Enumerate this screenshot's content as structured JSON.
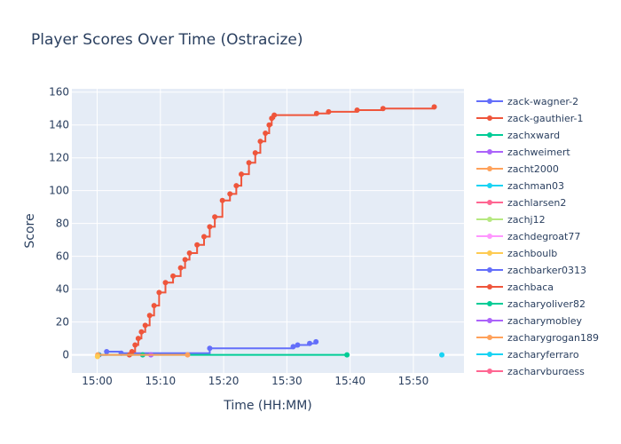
{
  "chart_data": {
    "type": "line",
    "title": "Player Scores Over Time (Ostracize)",
    "xlabel": "Time (HH:MM)",
    "ylabel": "Score",
    "x_unit": "minutes after 15:00",
    "xlim": [
      -4,
      58
    ],
    "ylim": [
      -11,
      162
    ],
    "x_ticks": [
      {
        "value": 0,
        "label": "15:00"
      },
      {
        "value": 10,
        "label": "15:10"
      },
      {
        "value": 20,
        "label": "15:20"
      },
      {
        "value": 30,
        "label": "15:30"
      },
      {
        "value": 40,
        "label": "15:40"
      },
      {
        "value": 50,
        "label": "15:50"
      }
    ],
    "y_ticks": [
      0,
      20,
      40,
      60,
      80,
      100,
      120,
      140,
      160
    ],
    "grid": true,
    "legend_position": "right",
    "series": [
      {
        "name": "zack-wagner-2",
        "color": "#636efa",
        "x": [
          0.3,
          1.5,
          3.8,
          17.8,
          31.0,
          31.7,
          33.6,
          34.6
        ],
        "y": [
          0,
          2,
          1,
          4,
          5,
          6,
          7,
          8
        ]
      },
      {
        "name": "zack-gauthier-1",
        "color": "#ef553b",
        "x": [
          5.1,
          5.5,
          6.0,
          6.5,
          7.0,
          7.6,
          8.3,
          9.0,
          9.8,
          10.8,
          12.0,
          13.2,
          13.9,
          14.6,
          15.8,
          16.9,
          17.8,
          18.6,
          19.8,
          21.0,
          22.0,
          22.8,
          24.0,
          25.0,
          25.8,
          26.6,
          27.2,
          27.6,
          28.0,
          34.7,
          36.6,
          41.1,
          45.2,
          53.3
        ],
        "y": [
          0,
          2,
          6,
          10,
          14,
          18,
          24,
          30,
          38,
          44,
          48,
          53,
          58,
          62,
          67,
          72,
          78,
          84,
          94,
          98,
          103,
          110,
          117,
          123,
          130,
          135,
          140,
          144,
          146,
          147,
          148,
          149,
          150,
          151
        ]
      },
      {
        "name": "zachxward",
        "color": "#00cc96",
        "x": [
          0.2,
          7.2,
          39.5
        ],
        "y": [
          0,
          0,
          0
        ]
      },
      {
        "name": "zachweimert",
        "color": "#ab63fa",
        "x": [
          8.5
        ],
        "y": [
          0
        ]
      },
      {
        "name": "zacht2000",
        "color": "#ffa15a",
        "x": [
          0.1,
          14.3
        ],
        "y": [
          0,
          0
        ]
      },
      {
        "name": "zachman03",
        "color": "#19d3f3",
        "x": [
          54.5
        ],
        "y": [
          0
        ]
      },
      {
        "name": "zachlarsen2",
        "color": "#ff6692",
        "x": [],
        "y": []
      },
      {
        "name": "zachj12",
        "color": "#b6e880",
        "x": [],
        "y": []
      },
      {
        "name": "zachdegroat77",
        "color": "#ff97ff",
        "x": [],
        "y": []
      },
      {
        "name": "zachboulb",
        "color": "#fecb52",
        "x": [
          0.05
        ],
        "y": [
          -1
        ]
      },
      {
        "name": "zachbarker0313",
        "color": "#636efa",
        "x": [],
        "y": []
      },
      {
        "name": "zachbaca",
        "color": "#ef553b",
        "x": [],
        "y": []
      },
      {
        "name": "zacharyoliver82",
        "color": "#00cc96",
        "x": [],
        "y": []
      },
      {
        "name": "zacharymobley",
        "color": "#ab63fa",
        "x": [],
        "y": []
      },
      {
        "name": "zacharygrogan189",
        "color": "#ffa15a",
        "x": [],
        "y": []
      },
      {
        "name": "zacharyferraro",
        "color": "#19d3f3",
        "x": [],
        "y": []
      },
      {
        "name": "zacharyburgess",
        "color": "#ff6692",
        "x": [],
        "y": []
      }
    ]
  }
}
